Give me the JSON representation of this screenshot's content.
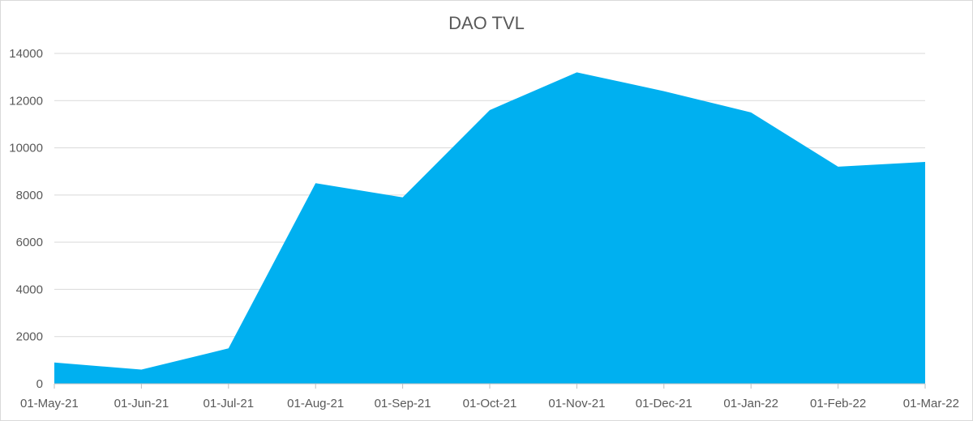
{
  "chart_data": {
    "type": "area",
    "title": "DAO TVL",
    "xlabel": "",
    "ylabel": "",
    "categories": [
      "01-May-21",
      "01-Jun-21",
      "01-Jul-21",
      "01-Aug-21",
      "01-Sep-21",
      "01-Oct-21",
      "01-Nov-21",
      "01-Dec-21",
      "01-Jan-22",
      "01-Feb-22",
      "01-Mar-22"
    ],
    "values": [
      900,
      600,
      1500,
      8500,
      7900,
      11600,
      13200,
      12400,
      11500,
      9200,
      9400
    ],
    "ylim": [
      0,
      14000
    ],
    "yticks": [
      "0",
      "2000",
      "4000",
      "6000",
      "8000",
      "10000",
      "12000",
      "14000"
    ],
    "grid": true,
    "legend": "none",
    "colors": {
      "fill": "#00B0F0",
      "grid": "#d9d9d9",
      "axis": "#bfbfbf",
      "text": "#595959"
    }
  }
}
